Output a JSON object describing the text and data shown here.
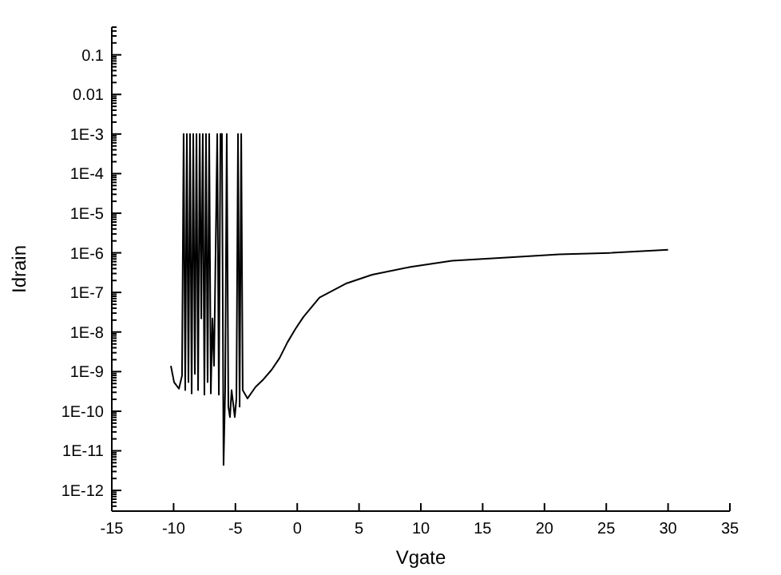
{
  "chart_data": {
    "type": "line",
    "xlabel": "Vgate",
    "ylabel": "Idrain",
    "log": "y",
    "grid": false,
    "marker": "none",
    "line_style": "solid",
    "xlim": [
      -15,
      35
    ],
    "xticks": [
      -15,
      -10,
      -5,
      0,
      5,
      10,
      15,
      20,
      25,
      30,
      35
    ],
    "ylim": [
      3e-13,
      0.5
    ],
    "yticks": [
      {
        "value": 1e-12,
        "label": "1E-12"
      },
      {
        "value": 1e-11,
        "label": "1E-11"
      },
      {
        "value": 1e-10,
        "label": "1E-10"
      },
      {
        "value": 1e-09,
        "label": "1E-9"
      },
      {
        "value": 1e-08,
        "label": "1E-8"
      },
      {
        "value": 1e-07,
        "label": "1E-7"
      },
      {
        "value": 1e-06,
        "label": "1E-6"
      },
      {
        "value": 1e-05,
        "label": "1E-5"
      },
      {
        "value": 0.0001,
        "label": "1E-4"
      },
      {
        "value": 0.001,
        "label": "1E-3"
      },
      {
        "value": 0.01,
        "label": "0.01"
      },
      {
        "value": 0.1,
        "label": "0.1"
      }
    ],
    "series": [
      {
        "color": "#000000",
        "x": [
          -10.22,
          -9.96,
          -9.57,
          -9.32,
          -9.19,
          -9.06,
          -8.93,
          -8.8,
          -8.67,
          -8.54,
          -8.41,
          -8.28,
          -8.15,
          -8.02,
          -7.89,
          -7.76,
          -7.64,
          -7.51,
          -7.38,
          -7.25,
          -7.12,
          -6.99,
          -6.86,
          -6.73,
          -6.47,
          -6.34,
          -6.21,
          -6.09,
          -5.96,
          -5.83,
          -5.7,
          -5.57,
          -5.44,
          -5.31,
          -5.05,
          -4.92,
          -4.79,
          -4.66,
          -4.53,
          -4.41,
          -4.02,
          -3.37,
          -2.73,
          -2.08,
          -1.43,
          -0.79,
          -0.14,
          0.5,
          1.8,
          4.0,
          6.06,
          9.16,
          12.52,
          16.91,
          21.18,
          25.44,
          30
        ],
        "values": [
          1.4e-09,
          5.4e-10,
          3.7e-10,
          7.9e-10,
          0.001,
          3.4e-10,
          0.001,
          5.4e-10,
          0.001,
          2.8e-10,
          0.001,
          8.7e-10,
          0.001,
          3.4e-10,
          0.001,
          2.2e-08,
          0.001,
          2.6e-10,
          0.001,
          5.4e-10,
          0.001,
          2.8e-10,
          2.2e-08,
          1.4e-09,
          0.001,
          2.6e-10,
          0.001,
          0.001,
          4.4e-12,
          3.4e-10,
          0.001,
          1.3e-10,
          7.1e-11,
          3.4e-10,
          7.1e-11,
          2.1e-10,
          0.001,
          1.3e-10,
          0.001,
          3.4e-10,
          2.1e-10,
          4.1e-10,
          6.4e-10,
          1.1e-09,
          2.2e-09,
          5.5e-09,
          1.2e-08,
          2.4e-08,
          7.4e-08,
          1.7e-07,
          2.8e-07,
          4.4e-07,
          6.3e-07,
          7.6e-07,
          9.1e-07,
          1e-06,
          1.2e-06
        ]
      }
    ]
  }
}
